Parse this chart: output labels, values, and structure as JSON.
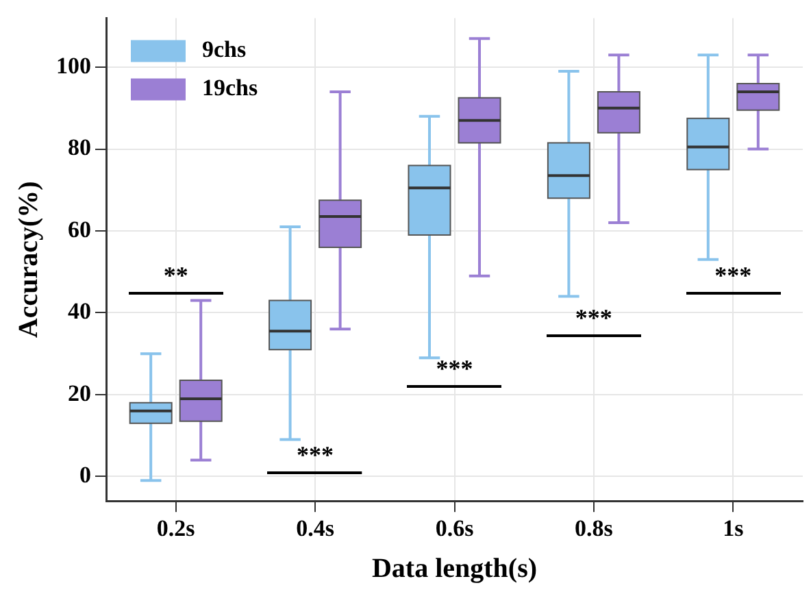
{
  "chart_data": {
    "type": "box",
    "xlabel": "Data length(s)",
    "ylabel": "Accuracy(%)",
    "categories": [
      "0.2s",
      "0.4s",
      "0.6s",
      "0.8s",
      "1s"
    ],
    "series": [
      {
        "name": "9chs",
        "color": "#89c3ec",
        "boxes": [
          {
            "low": -1,
            "q1": 13,
            "median": 16,
            "q3": 18,
            "high": 30
          },
          {
            "low": 9,
            "q1": 31,
            "median": 35.5,
            "q3": 43,
            "high": 61
          },
          {
            "low": 29,
            "q1": 59,
            "median": 70.5,
            "q3": 76,
            "high": 88
          },
          {
            "low": 44,
            "q1": 68,
            "median": 73.5,
            "q3": 81.5,
            "high": 99
          },
          {
            "low": 53,
            "q1": 75,
            "median": 80.5,
            "q3": 87.5,
            "high": 103
          }
        ]
      },
      {
        "name": "19chs",
        "color": "#9b7fd4",
        "boxes": [
          {
            "low": 4,
            "q1": 13.5,
            "median": 19,
            "q3": 23.5,
            "high": 43
          },
          {
            "low": 36,
            "q1": 56,
            "median": 63.5,
            "q3": 67.5,
            "high": 94
          },
          {
            "low": 49,
            "q1": 81.5,
            "median": 87,
            "q3": 92.5,
            "high": 107
          },
          {
            "low": 62,
            "q1": 84,
            "median": 90,
            "q3": 94,
            "high": 103
          },
          {
            "low": 80,
            "q1": 89.5,
            "median": 94,
            "q3": 96,
            "high": 103
          }
        ]
      }
    ],
    "ylim": [
      -6,
      112
    ],
    "yticks": [
      0,
      20,
      40,
      60,
      80,
      100
    ],
    "grid": true,
    "legend": "top left",
    "annotations": [
      "**",
      "***",
      "***",
      "***",
      "***"
    ]
  }
}
